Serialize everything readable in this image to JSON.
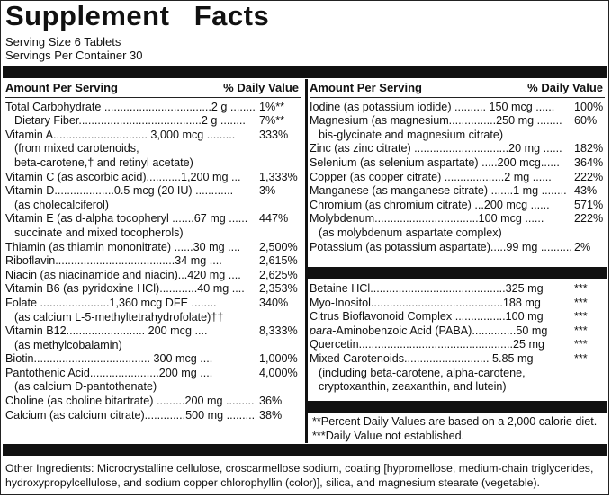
{
  "title": "Supplement   Facts",
  "serving_size": "Serving Size 6 Tablets",
  "servings_per_container": "Servings Per Container 30",
  "left": {
    "hdr_amount": "Amount Per Serving",
    "hdr_dv": "% Daily Value",
    "rows": [
      {
        "text": "Total Carbohydrate ..................................2 g ........",
        "dv": "1%**"
      },
      {
        "text": "Dietary Fiber.......................................2 g ........",
        "dv": "7%**",
        "indent": true
      },
      {
        "text": "Vitamin A.............................. 3,000 mcg .........",
        "dv": "333%"
      },
      {
        "cont": "(from mixed carotenoids,"
      },
      {
        "cont": "beta-carotene,† and retinyl acetate)"
      },
      {
        "text": "Vitamin C (as ascorbic acid)...........1,200 mg ...",
        "dv": "1,333%"
      },
      {
        "text": "Vitamin D...................0.5 mcg (20 IU) ............",
        "dv": "3%"
      },
      {
        "cont": "(as cholecalciferol)"
      },
      {
        "text": "Vitamin E (as d-alpha tocopheryl .......67 mg ......",
        "dv": "447%"
      },
      {
        "cont": "succinate and mixed tocopherols)"
      },
      {
        "text": "Thiamin (as thiamin mononitrate) ......30 mg ....",
        "dv": "2,500%"
      },
      {
        "text": "Riboflavin......................................34 mg ....",
        "dv": "2,615%"
      },
      {
        "text": "Niacin (as niacinamide and niacin)...420 mg ....",
        "dv": "2,625%"
      },
      {
        "text": "Vitamin B6 (as pyridoxine HCl)............40 mg ....",
        "dv": "2,353%"
      },
      {
        "text": "Folate ......................1,360 mcg DFE ........",
        "dv": "340%"
      },
      {
        "cont": "(as calcium L-5-methyltetrahydrofolate)††"
      },
      {
        "text": "Vitamin B12......................... 200 mcg ....",
        "dv": "8,333%"
      },
      {
        "cont": "(as methylcobalamin)"
      },
      {
        "text": "Biotin..................................... 300 mcg ....",
        "dv": "1,000%"
      },
      {
        "text": "Pantothenic Acid......................200 mg ....",
        "dv": "4,000%"
      },
      {
        "cont": "(as calcium D-pantothenate)"
      },
      {
        "text": "Choline (as choline bitartrate) .........200 mg .........",
        "dv": "36%"
      },
      {
        "text": "Calcium (as calcium citrate).............500 mg .........",
        "dv": "38%"
      }
    ]
  },
  "right": {
    "hdr_amount": "Amount Per Serving",
    "hdr_dv": "% Daily Value",
    "rows": [
      {
        "text": "Iodine (as potassium iodide) .......... 150 mcg ......",
        "dv": "100%"
      },
      {
        "text": "Magnesium (as magnesium...............250 mg ........",
        "dv": "60%"
      },
      {
        "cont": "bis-glycinate and magnesium citrate)"
      },
      {
        "text": "Zinc (as zinc citrate) ..............................20 mg ......",
        "dv": "182%"
      },
      {
        "text": "Selenium (as selenium aspartate) .....200 mcg......",
        "dv": "364%"
      },
      {
        "text": "Copper (as copper citrate) ...................2 mg ......",
        "dv": "222%"
      },
      {
        "text": "Manganese (as manganese citrate) .......1 mg ........",
        "dv": "43%"
      },
      {
        "text": "Chromium (as chromium citrate) ...200 mcg ......",
        "dv": "571%"
      },
      {
        "text": "Molybdenum.................................100 mcg ......",
        "dv": "222%"
      },
      {
        "cont": "(as molybdenum aspartate complex)"
      },
      {
        "text": "Potassium (as potassium aspartate).....99 mg ..........",
        "dv": "2%"
      }
    ],
    "rows2": [
      {
        "text": "Betaine HCl...........................................325 mg",
        "dv": "***"
      },
      {
        "text": "Myo-Inositol..........................................188 mg",
        "dv": "***"
      },
      {
        "text": "Citrus Bioflavonoid Complex ................100 mg",
        "dv": "***"
      },
      {
        "pre": "para",
        "text": "-Aminobenzoic Acid (PABA)..............50 mg",
        "dv": "***"
      },
      {
        "text": "Quercetin.................................................25 mg",
        "dv": "***"
      },
      {
        "text": "Mixed Carotenoids........................... 5.85 mg",
        "dv": "***"
      },
      {
        "cont": "(including beta-carotene, alpha-carotene,"
      },
      {
        "cont": "cryptoxanthin, zeaxanthin, and lutein)"
      }
    ],
    "footnote1": "**Percent Daily Values are based on a 2,000 calorie diet.",
    "footnote2": "***Daily Value not established."
  },
  "other_ingredients": "Other Ingredients: Microcrystalline cellulose, croscarmellose sodium, coating [hypromellose, medium-chain triglycerides, hydroxypropylcellulose, and sodium copper chlorophyllin (color)], silica, and magnesium stearate (vegetable)."
}
